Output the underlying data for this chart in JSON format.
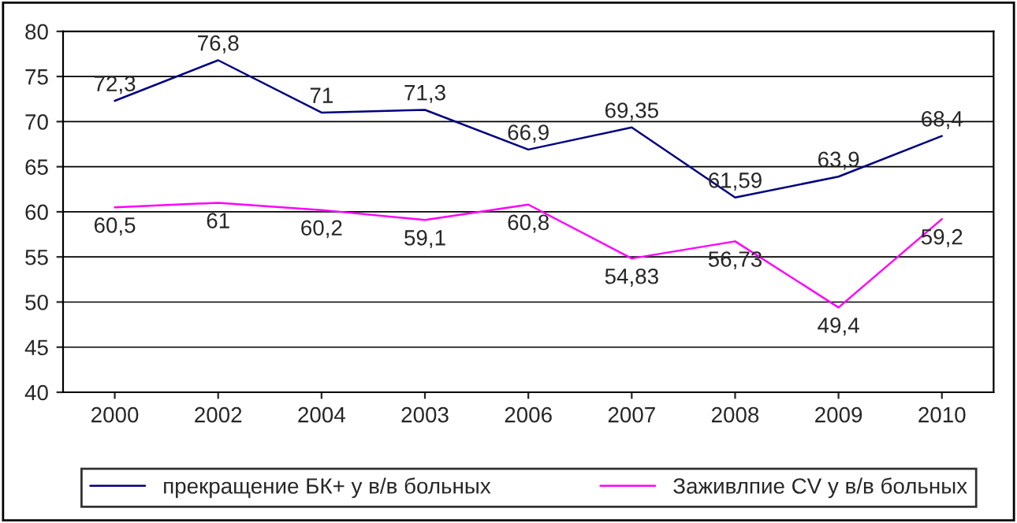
{
  "chart_data": {
    "type": "line",
    "categories": [
      "2000",
      "2002",
      "2004",
      "2003",
      "2006",
      "2007",
      "2008",
      "2009",
      "2010"
    ],
    "series": [
      {
        "name": "прекращение БК+ у в/в больных",
        "color": "#000080",
        "values": [
          72.3,
          76.8,
          71,
          71.3,
          66.9,
          69.35,
          61.59,
          63.9,
          68.4
        ],
        "value_labels": [
          "72,3",
          "76,8",
          "71",
          "71,3",
          "66,9",
          "69,35",
          "61,59",
          "63,9",
          "68,4"
        ]
      },
      {
        "name": "Заживлпие CV у в/в больных",
        "color": "#ff00ff",
        "values": [
          60.5,
          61,
          60.2,
          59.1,
          60.8,
          54.83,
          56.73,
          49.4,
          59.2
        ],
        "value_labels": [
          "60,5",
          "61",
          "60,2",
          "59,1",
          "60,8",
          "54,83",
          "56,73",
          "49,4",
          "59,2"
        ]
      }
    ],
    "ylim": [
      40,
      80
    ],
    "yticks": [
      40,
      45,
      50,
      55,
      60,
      65,
      70,
      75,
      80
    ],
    "grid": "y",
    "legend": "bottom",
    "marker": "none",
    "line_style": "solid"
  }
}
